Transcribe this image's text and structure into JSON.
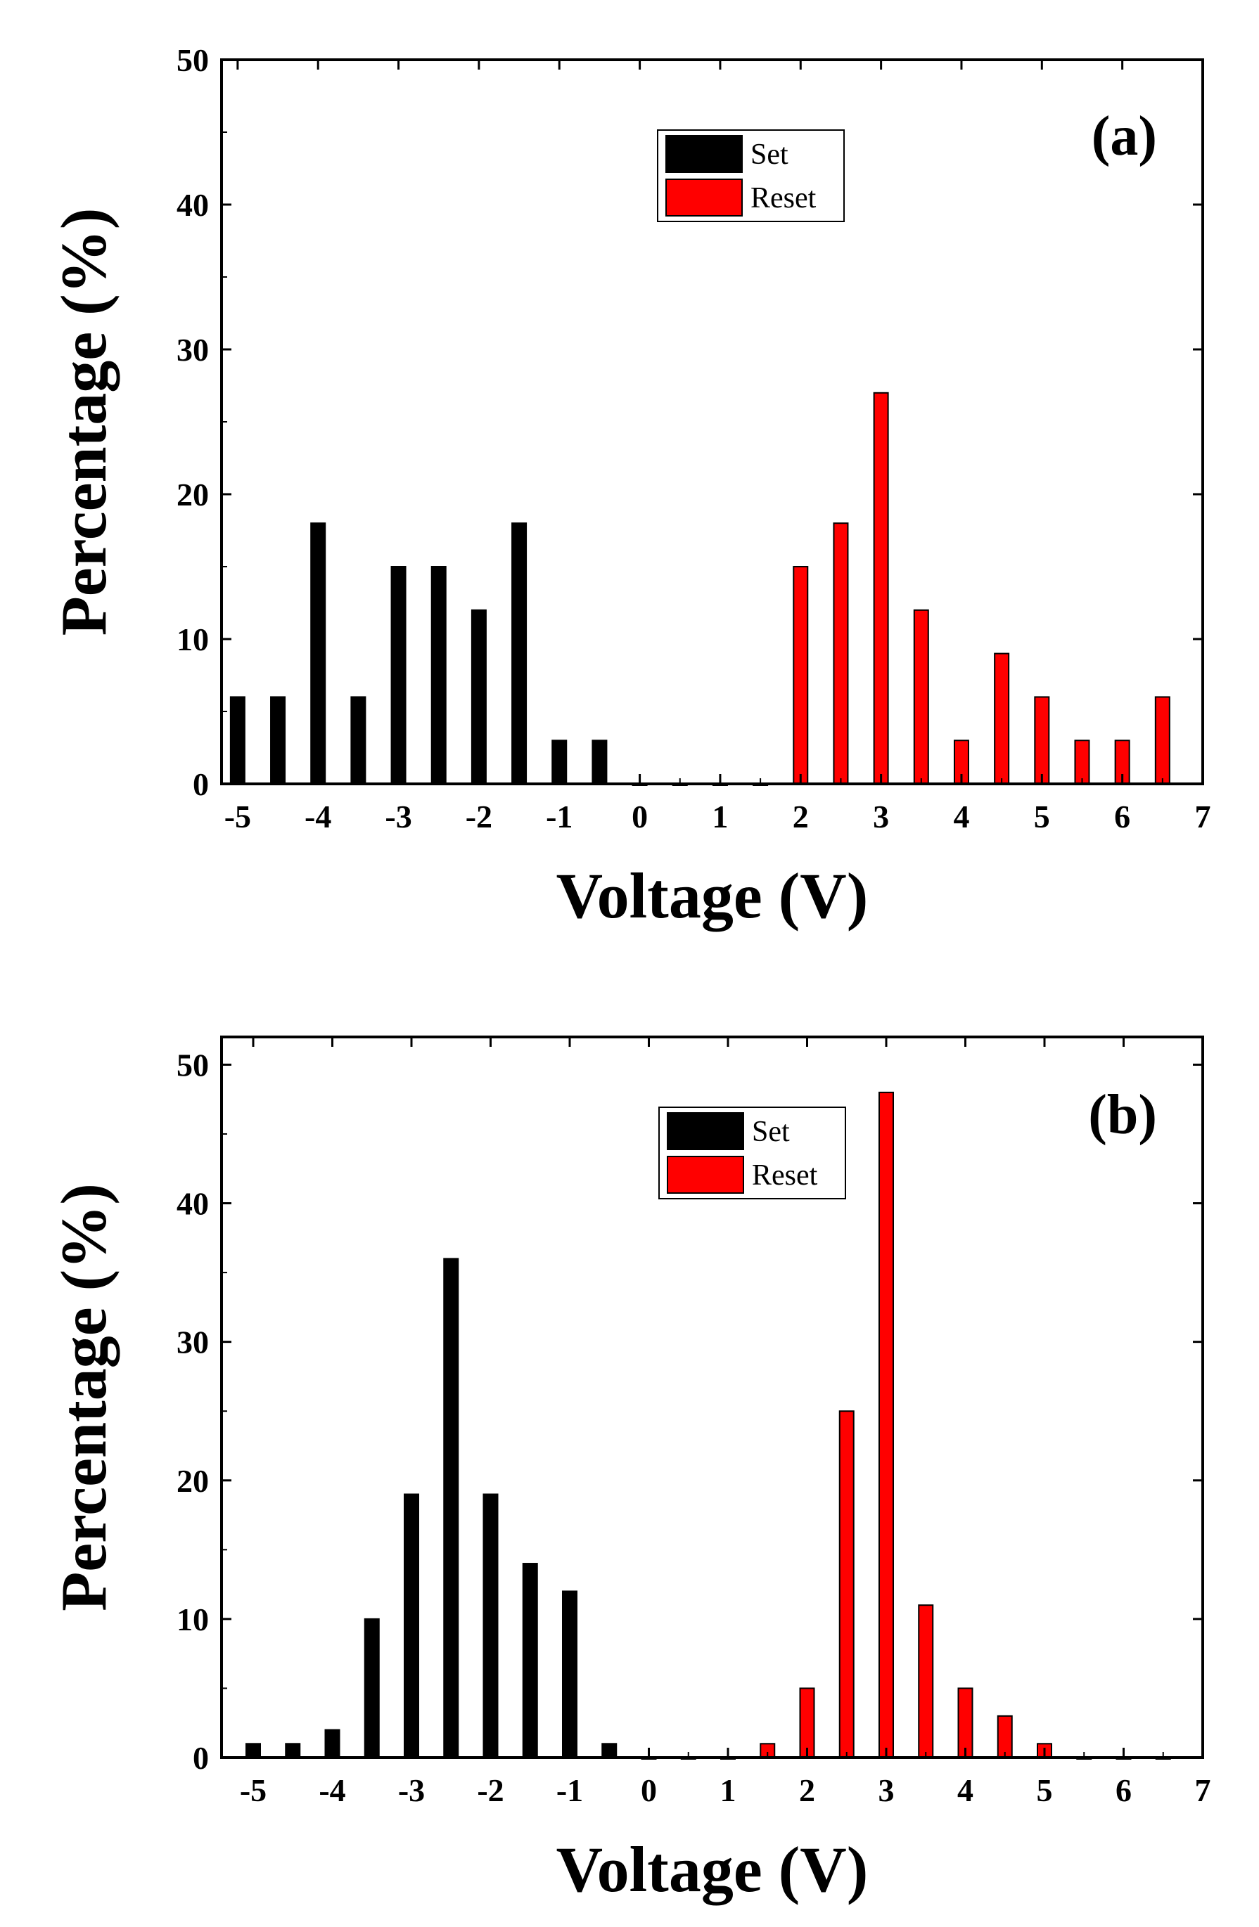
{
  "chart_data": [
    {
      "type": "bar",
      "panel_label": "(a)",
      "xlabel": "Voltage (V)",
      "ylabel": "Percentage (%)",
      "xlim": [
        -5.2,
        7
      ],
      "ylim": [
        0,
        50
      ],
      "xticks": [
        -5,
        -4,
        -3,
        -2,
        -1,
        0,
        1,
        2,
        3,
        4,
        5,
        6,
        7
      ],
      "yticks": [
        0,
        10,
        20,
        30,
        40,
        50
      ],
      "grid": false,
      "legend": "top-center",
      "series": [
        {
          "name": "Set",
          "color": "#000000",
          "x": [
            -5,
            -4.5,
            -4,
            -3.5,
            -3,
            -2.5,
            -2,
            -1.5,
            -1,
            -0.5,
            0,
            0.5,
            1,
            1.5
          ],
          "values": [
            6,
            6,
            18,
            6,
            15,
            15,
            12,
            18,
            3,
            3,
            0,
            0,
            0,
            0
          ]
        },
        {
          "name": "Reset",
          "color": "#ff0000",
          "x": [
            2,
            2.5,
            3,
            3.5,
            4,
            4.5,
            5,
            5.5,
            6,
            6.5
          ],
          "values": [
            15,
            18,
            27,
            12,
            3,
            9,
            6,
            3,
            3,
            6
          ]
        }
      ]
    },
    {
      "type": "bar",
      "panel_label": "(b)",
      "xlabel": "Voltage (V)",
      "ylabel": "Percentage (%)",
      "xlim": [
        -5.4,
        7
      ],
      "ylim": [
        0,
        52
      ],
      "xticks": [
        -5,
        -4,
        -3,
        -2,
        -1,
        0,
        1,
        2,
        3,
        4,
        5,
        6,
        7
      ],
      "yticks": [
        0,
        10,
        20,
        30,
        40,
        50
      ],
      "grid": false,
      "legend": "top-center",
      "series": [
        {
          "name": "Set",
          "color": "#000000",
          "x": [
            -5,
            -4.5,
            -4,
            -3.5,
            -3,
            -2.5,
            -2,
            -1.5,
            -1,
            -0.5,
            0,
            0.5
          ],
          "values": [
            1,
            1,
            2,
            10,
            19,
            36,
            19,
            14,
            12,
            1,
            0,
            0
          ]
        },
        {
          "name": "Reset",
          "color": "#ff0000",
          "x": [
            1,
            1.5,
            2,
            2.5,
            3,
            3.5,
            4,
            4.5,
            5,
            5.5,
            6,
            6.5
          ],
          "values": [
            0,
            1,
            5,
            25,
            48,
            11,
            5,
            3,
            1,
            0,
            0,
            0
          ]
        }
      ]
    }
  ]
}
